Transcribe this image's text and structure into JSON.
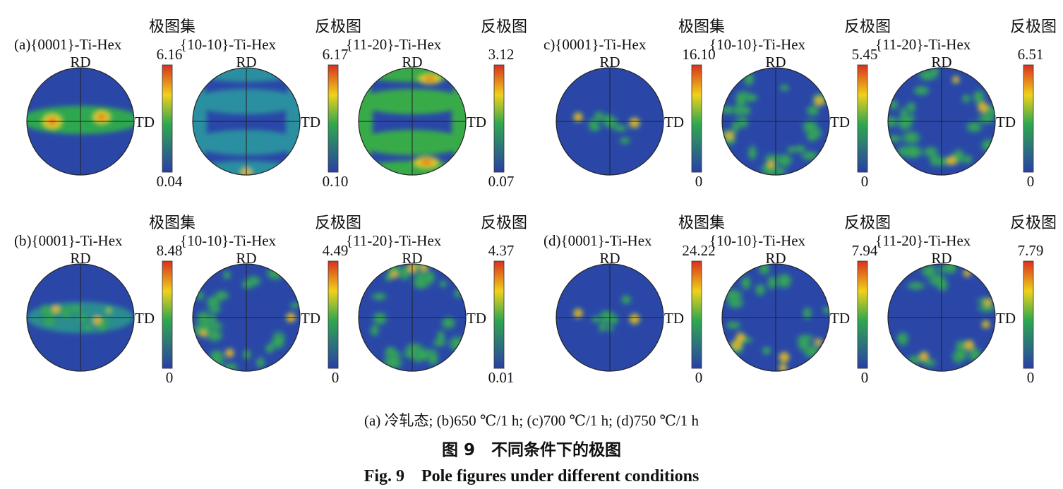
{
  "panels": [
    {
      "id": "a",
      "figures": [
        {
          "type_label": "极图集",
          "title": "(a){0001}-Ti-Hex",
          "rd": "RD",
          "td": "TD",
          "max": "6.16",
          "min": "0.04",
          "pattern": "horizontal-band"
        },
        {
          "type_label": "反极图",
          "title": "{10-10}-Ti-Hex",
          "rd": "RD",
          "td": "TD",
          "max": "6.17",
          "min": "0.10",
          "pattern": "two-bands"
        },
        {
          "type_label": "反极图",
          "title": "{11-20}-Ti-Hex",
          "rd": "RD",
          "td": "TD",
          "max": "3.12",
          "min": "0.07",
          "pattern": "two-bands-strong"
        }
      ]
    },
    {
      "id": "c",
      "figures": [
        {
          "type_label": "极图集",
          "title": "c){0001}-Ti-Hex",
          "rd": "RD",
          "td": "TD",
          "max": "16.10",
          "min": "0",
          "pattern": "center-spots"
        },
        {
          "type_label": "反极图",
          "title": "{10-10}-Ti-Hex",
          "rd": "RD",
          "td": "TD",
          "max": "5.45",
          "min": "0",
          "pattern": "ring"
        },
        {
          "type_label": "反极图",
          "title": "{11-20}-Ti-Hex",
          "rd": "RD",
          "td": "TD",
          "max": "6.51",
          "min": "0",
          "pattern": "ring"
        }
      ]
    },
    {
      "id": "b",
      "figures": [
        {
          "type_label": "极图集",
          "title": "(b){0001}-Ti-Hex",
          "rd": "RD",
          "td": "TD",
          "max": "8.48",
          "min": "0",
          "pattern": "horizontal-spots"
        },
        {
          "type_label": "反极图",
          "title": "{10-10}-Ti-Hex",
          "rd": "RD",
          "td": "TD",
          "max": "4.49",
          "min": "0",
          "pattern": "ring"
        },
        {
          "type_label": "反极图",
          "title": "{11-20}-Ti-Hex",
          "rd": "RD",
          "td": "TD",
          "max": "4.37",
          "min": "0.01",
          "pattern": "ring"
        }
      ]
    },
    {
      "id": "d",
      "figures": [
        {
          "type_label": "极图集",
          "title": "(d){0001}-Ti-Hex",
          "rd": "RD",
          "td": "TD",
          "max": "24.22",
          "min": "0",
          "pattern": "center-spots"
        },
        {
          "type_label": "反极图",
          "title": "{10-10}-Ti-Hex",
          "rd": "RD",
          "td": "TD",
          "max": "7.94",
          "min": "0",
          "pattern": "ring-sparse"
        },
        {
          "type_label": "反极图",
          "title": "{11-20}-Ti-Hex",
          "rd": "RD",
          "td": "TD",
          "max": "7.79",
          "min": "0",
          "pattern": "ring-sparse"
        }
      ]
    }
  ],
  "colorscale": [
    "#2a3fa6",
    "#2fa84f",
    "#f0d11a",
    "#d9301f"
  ],
  "caption": {
    "conditions": "(a) 冷轧态; (b)650 ℃/1 h; (c)700 ℃/1 h; (d)750 ℃/1 h",
    "title_cn": "图 9　不同条件下的极图",
    "title_en": "Fig. 9　Pole figures under different conditions"
  }
}
